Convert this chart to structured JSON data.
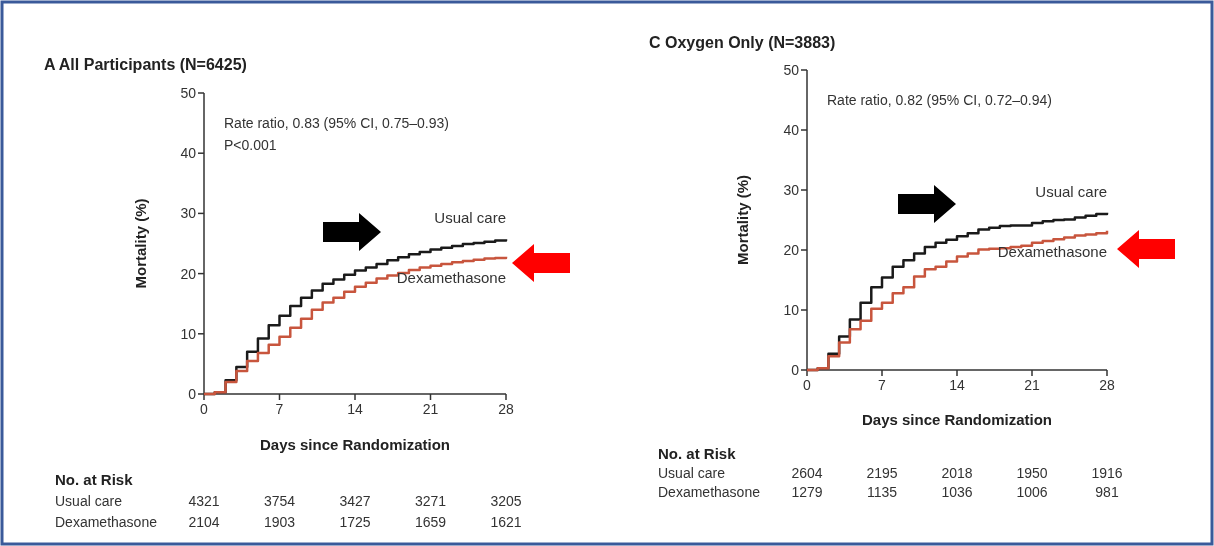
{
  "chart_data": [
    {
      "type": "step",
      "title": "A  All Participants (N=6425)",
      "xlabel": "Days since Randomization",
      "ylabel": "Mortality (%)",
      "x": [
        0,
        1,
        2,
        3,
        4,
        5,
        6,
        7,
        8,
        9,
        10,
        11,
        12,
        13,
        14,
        15,
        16,
        17,
        18,
        19,
        20,
        21,
        22,
        23,
        24,
        25,
        26,
        27,
        28
      ],
      "series": [
        {
          "name": "Usual care",
          "color": "#1a1a1a",
          "values": [
            0,
            0.3,
            2.3,
            4.5,
            7,
            9.2,
            11.4,
            13,
            14.6,
            16,
            17.2,
            18.3,
            19,
            19.8,
            20.5,
            21,
            21.6,
            22.2,
            22.7,
            23.2,
            23.6,
            24,
            24.3,
            24.6,
            24.9,
            25.1,
            25.3,
            25.5,
            25.7
          ]
        },
        {
          "name": "Dexamethasone",
          "color": "#c8553d",
          "values": [
            0,
            0.3,
            2,
            3.8,
            5.5,
            6.8,
            8.2,
            9.5,
            11,
            12.5,
            14,
            15.2,
            16,
            17,
            17.8,
            18.5,
            19.2,
            19.7,
            20.1,
            20.6,
            21,
            21.3,
            21.6,
            21.9,
            22.1,
            22.3,
            22.5,
            22.6,
            22.8
          ]
        }
      ],
      "xlim": [
        0,
        28
      ],
      "xticks": [
        0,
        7,
        14,
        21,
        28
      ],
      "ylim": [
        0,
        50
      ],
      "yticks": [
        0,
        10,
        20,
        30,
        40,
        50
      ],
      "legend": false,
      "annotations": [
        "Rate ratio, 0.83 (95% CI, 0.75–0.93)",
        "P<0.001",
        "No. at Risk",
        "4321",
        "3754",
        "3427",
        "3271",
        "3205",
        "2104",
        "1903",
        "1725",
        "1659",
        "1621"
      ]
    },
    {
      "type": "step",
      "title": "C  Oxygen Only (N=3883)",
      "xlabel": "Days since Randomization",
      "ylabel": "Mortality (%)",
      "x": [
        0,
        1,
        2,
        3,
        4,
        5,
        6,
        7,
        8,
        9,
        10,
        11,
        12,
        13,
        14,
        15,
        16,
        17,
        18,
        19,
        20,
        21,
        22,
        23,
        24,
        25,
        26,
        27,
        28
      ],
      "series": [
        {
          "name": "Usual care",
          "color": "#1a1a1a",
          "values": [
            0,
            0.3,
            2.7,
            5.6,
            8.4,
            11.2,
            13.8,
            15.4,
            17.2,
            18.3,
            19.4,
            20.5,
            21.2,
            21.7,
            22.3,
            22.8,
            23.4,
            23.7,
            24,
            24.1,
            24.1,
            24.5,
            24.8,
            25,
            25.1,
            25.4,
            25.7,
            26,
            26.2
          ]
        },
        {
          "name": "Dexamethasone",
          "color": "#c8553d",
          "values": [
            0,
            0.3,
            2.3,
            4.6,
            6.8,
            8.2,
            10.2,
            11.2,
            12.8,
            13.8,
            15.6,
            16.8,
            17.2,
            18.1,
            18.9,
            19.4,
            20.1,
            20.2,
            20.3,
            20.5,
            20.7,
            21.2,
            21.5,
            21.8,
            22.1,
            22.4,
            22.6,
            22.8,
            23.2
          ]
        }
      ],
      "xlim": [
        0,
        28
      ],
      "xticks": [
        0,
        7,
        14,
        21,
        28
      ],
      "ylim": [
        0,
        50
      ],
      "yticks": [
        0,
        10,
        20,
        30,
        40,
        50
      ],
      "legend": false,
      "annotations": [
        "Rate ratio, 0.82 (95% CI, 0.72–0.94)",
        "No. at Risk",
        "2604",
        "2195",
        "2018",
        "1950",
        "1916",
        "1279",
        "1135",
        "1036",
        "1006",
        "981"
      ]
    }
  ]
}
